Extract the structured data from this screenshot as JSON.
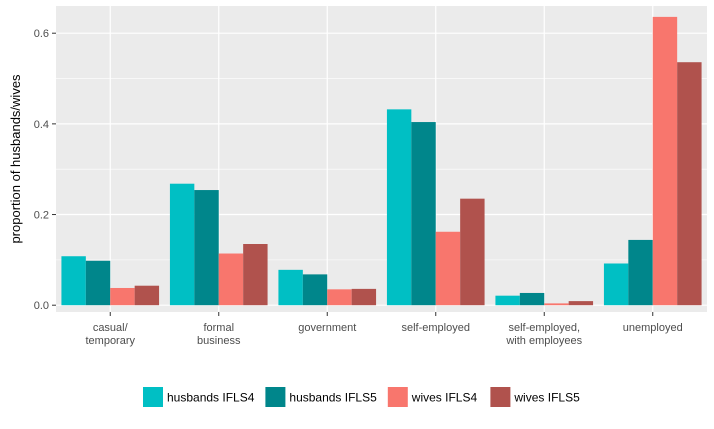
{
  "chart_data": {
    "type": "bar",
    "title": "",
    "xlabel": "",
    "ylabel": "proportion of husbands/wives",
    "ylim": [
      -0.015,
      0.66
    ],
    "yticks": [
      0.0,
      0.2,
      0.4,
      0.6
    ],
    "ytick_labels": [
      "0.0",
      "0.2",
      "0.4",
      "0.6"
    ],
    "categories": [
      [
        "casual/",
        "temporary"
      ],
      [
        "formal",
        "business"
      ],
      [
        "government"
      ],
      [
        "self-employed"
      ],
      [
        "self-employed,",
        "with employees"
      ],
      [
        "unemployed"
      ]
    ],
    "series": [
      {
        "name": "husbands IFLS4",
        "color": "#00BFC4",
        "values": [
          0.108,
          0.268,
          0.078,
          0.432,
          0.021,
          0.092
        ]
      },
      {
        "name": "husbands IFLS5",
        "color": "#00868B",
        "values": [
          0.098,
          0.254,
          0.068,
          0.404,
          0.027,
          0.144
        ]
      },
      {
        "name": "wives IFLS4",
        "color": "#F8766D",
        "values": [
          0.038,
          0.114,
          0.035,
          0.162,
          0.004,
          0.636
        ]
      },
      {
        "name": "wives IFLS5",
        "color": "#B0524D",
        "values": [
          0.043,
          0.135,
          0.036,
          0.235,
          0.009,
          0.536
        ]
      }
    ],
    "grid": true,
    "panel_background": "#EBEBEB",
    "grid_color": "#FFFFFF",
    "legend_position": "bottom"
  }
}
